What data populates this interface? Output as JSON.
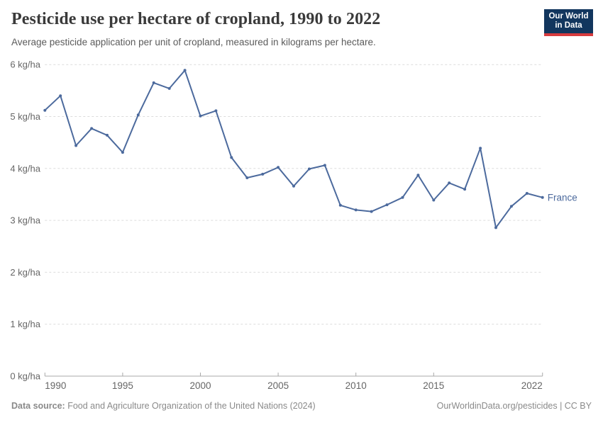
{
  "header": {
    "title": "Pesticide use per hectare of cropland, 1990 to 2022",
    "subtitle": "Average pesticide application per unit of cropland, measured in kilograms per hectare.",
    "logo": {
      "line1": "Our World",
      "line2": "in Data",
      "bg_color": "#12365e",
      "bar_color": "#d73b3e",
      "text_color": "#ffffff"
    }
  },
  "footer": {
    "datasource_label": "Data source:",
    "datasource_text": " Food and Agriculture Organization of the United Nations (2024)",
    "link_text": "OurWorldinData.org/pesticides | CC BY"
  },
  "chart_data": {
    "type": "line",
    "title": "Pesticide use per hectare of cropland, 1990 to 2022",
    "xlabel": "",
    "ylabel": "kg/ha",
    "xlim": [
      1990,
      2022
    ],
    "ylim": [
      0,
      6
    ],
    "grid": "dashed horizontal",
    "legend_position": "end-of-line label",
    "x_ticks": [
      1990,
      1995,
      2000,
      2005,
      2010,
      2015,
      2022
    ],
    "y_ticks": [
      {
        "value": 0,
        "label": "0 kg/ha"
      },
      {
        "value": 1,
        "label": "1 kg/ha"
      },
      {
        "value": 2,
        "label": "2 kg/ha"
      },
      {
        "value": 3,
        "label": "3 kg/ha"
      },
      {
        "value": 4,
        "label": "4 kg/ha"
      },
      {
        "value": 5,
        "label": "5 kg/ha"
      },
      {
        "value": 6,
        "label": "6 kg/ha"
      }
    ],
    "series": [
      {
        "name": "France",
        "color": "#4c6a9d",
        "x": [
          1990,
          1991,
          1992,
          1993,
          1994,
          1995,
          1996,
          1997,
          1998,
          1999,
          2000,
          2001,
          2002,
          2003,
          2004,
          2005,
          2006,
          2007,
          2008,
          2009,
          2010,
          2011,
          2012,
          2013,
          2014,
          2015,
          2016,
          2017,
          2018,
          2019,
          2020,
          2021,
          2022
        ],
        "values": [
          5.12,
          5.4,
          4.44,
          4.77,
          4.64,
          4.31,
          5.03,
          5.65,
          5.54,
          5.89,
          5.01,
          5.11,
          4.21,
          3.82,
          3.89,
          4.02,
          3.66,
          3.99,
          4.06,
          3.29,
          3.2,
          3.17,
          3.3,
          3.44,
          3.87,
          3.39,
          3.72,
          3.6,
          4.39,
          2.86,
          3.27,
          3.52,
          3.44
        ]
      }
    ],
    "colors": {
      "gridline": "#dcdcdc",
      "axis": "#a9a9a9",
      "tick_label": "#666666"
    }
  }
}
